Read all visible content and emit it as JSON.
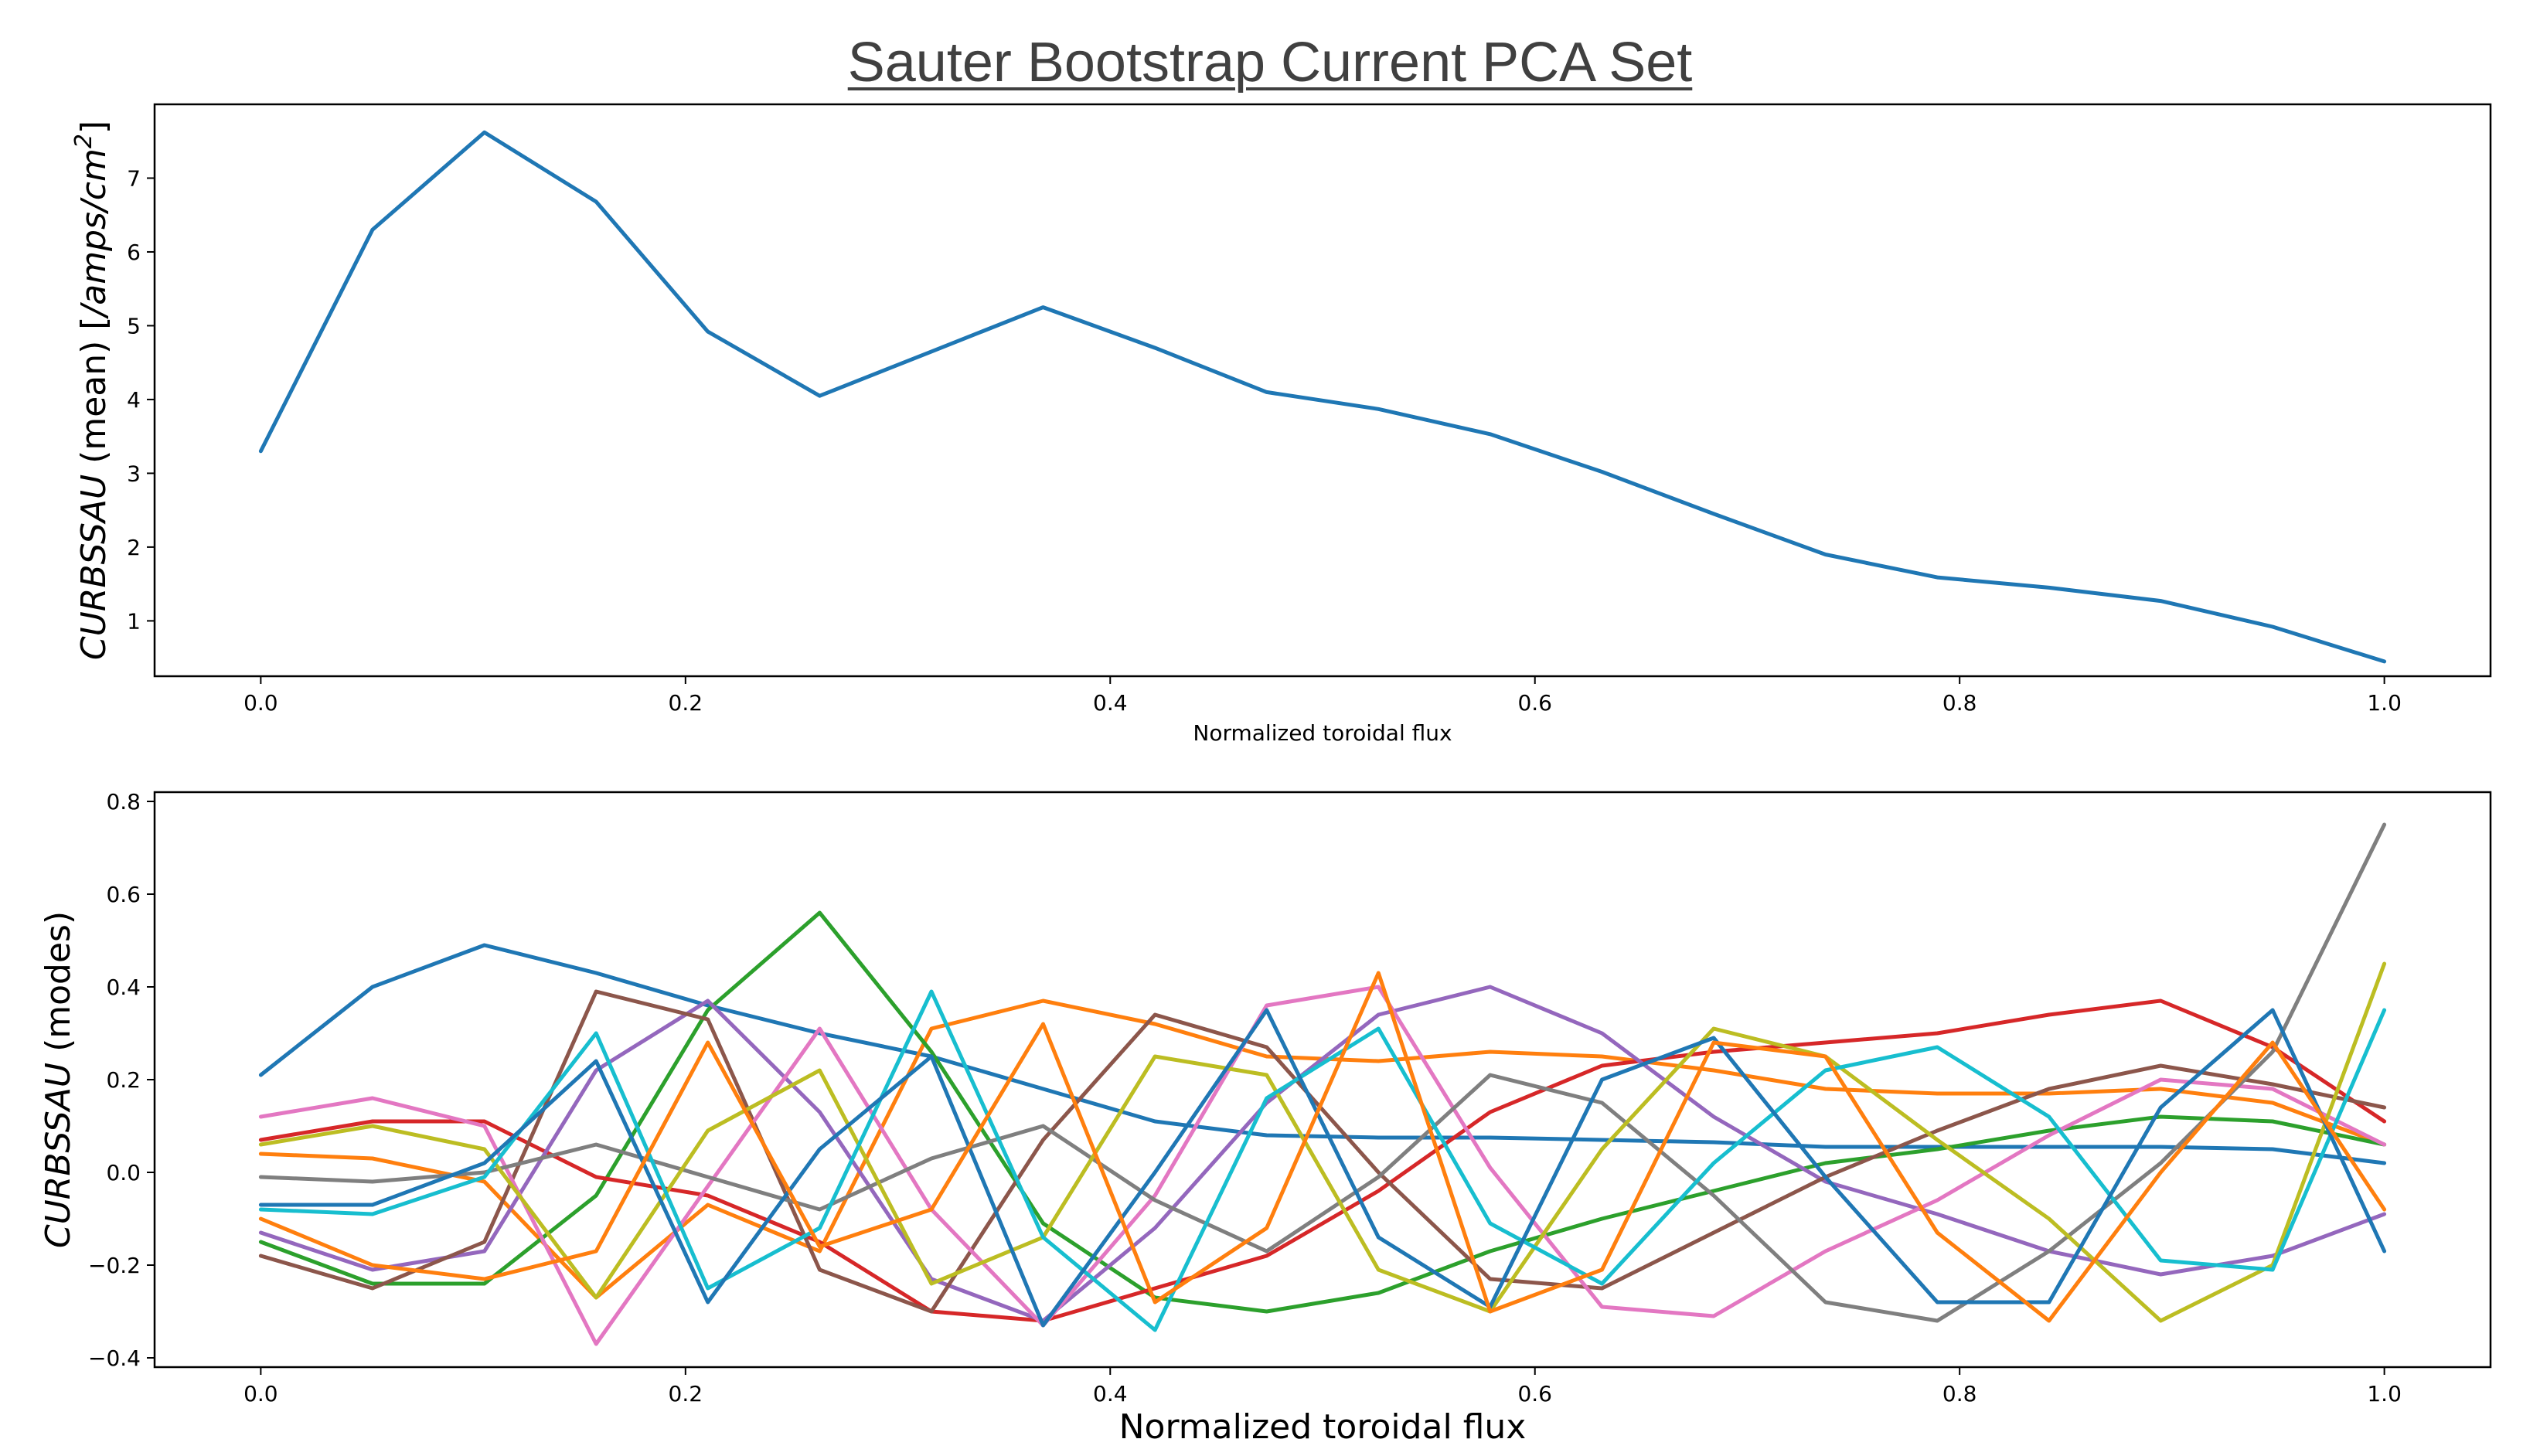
{
  "title": "Sauter Bootstrap Current PCA Set",
  "chart_data": [
    {
      "type": "line",
      "xlabel": "Normalized toroidal flux",
      "ylabel_italic": "CURBSSAU",
      "ylabel_rest": " (mean) [",
      "ylabel_units": "/amps/cm",
      "ylabel_sup": "2",
      "ylabel_close": "]",
      "xlim": [
        -0.05,
        1.05
      ],
      "ylim": [
        0.25,
        8.0
      ],
      "xticks": [
        "0.0",
        "0.2",
        "0.4",
        "0.6",
        "0.8",
        "1.0"
      ],
      "xtick_values": [
        0,
        0.2,
        0.4,
        0.6,
        0.8,
        1.0
      ],
      "yticks": [
        "1",
        "2",
        "3",
        "4",
        "5",
        "6",
        "7"
      ],
      "ytick_values": [
        1,
        2,
        3,
        4,
        5,
        6,
        7
      ],
      "grid": false,
      "x": [
        0,
        0.0526,
        0.1053,
        0.1579,
        0.2105,
        0.2632,
        0.3158,
        0.3684,
        0.4211,
        0.4737,
        0.5263,
        0.5789,
        0.6316,
        0.6842,
        0.7368,
        0.7895,
        0.8421,
        0.8947,
        0.9474,
        1.0
      ],
      "series": [
        {
          "color": "#1f77b4",
          "values": [
            3.3,
            6.3,
            7.62,
            6.68,
            4.92,
            4.05,
            4.65,
            5.25,
            4.7,
            4.1,
            3.87,
            3.53,
            3.02,
            2.45,
            1.9,
            1.59,
            1.45,
            1.27,
            0.92,
            0.45
          ]
        }
      ]
    },
    {
      "type": "line",
      "xlabel": "Normalized toroidal flux",
      "ylabel_italic": "CURBSSAU",
      "ylabel_rest": " (modes)",
      "xlim": [
        -0.05,
        1.05
      ],
      "ylim": [
        -0.42,
        0.82
      ],
      "xticks": [
        "0.0",
        "0.2",
        "0.4",
        "0.6",
        "0.8",
        "1.0"
      ],
      "xtick_values": [
        0,
        0.2,
        0.4,
        0.6,
        0.8,
        1.0
      ],
      "yticks": [
        "−0.4",
        "−0.2",
        "0.0",
        "0.2",
        "0.4",
        "0.6",
        "0.8"
      ],
      "ytick_values": [
        -0.4,
        -0.2,
        0.0,
        0.2,
        0.4,
        0.6,
        0.8
      ],
      "grid": false,
      "x": [
        0,
        0.0526,
        0.1053,
        0.1579,
        0.2105,
        0.2632,
        0.3158,
        0.3684,
        0.4211,
        0.4737,
        0.5263,
        0.5789,
        0.6316,
        0.6842,
        0.7368,
        0.7895,
        0.8421,
        0.8947,
        0.9474,
        1.0
      ],
      "series": [
        {
          "color": "#1f77b4",
          "values": [
            0.21,
            0.4,
            0.49,
            0.43,
            0.36,
            0.3,
            0.25,
            0.18,
            0.11,
            0.08,
            0.075,
            0.075,
            0.07,
            0.065,
            0.055,
            0.055,
            0.055,
            0.055,
            0.05,
            0.02
          ]
        },
        {
          "color": "#ff7f0e",
          "values": [
            0.04,
            0.03,
            -0.02,
            -0.27,
            -0.07,
            -0.17,
            0.31,
            0.37,
            0.32,
            0.25,
            0.24,
            0.26,
            0.25,
            0.22,
            0.18,
            0.17,
            0.17,
            0.18,
            0.15,
            0.06
          ]
        },
        {
          "color": "#2ca02c",
          "values": [
            -0.15,
            -0.24,
            -0.24,
            -0.05,
            0.35,
            0.56,
            0.26,
            -0.11,
            -0.27,
            -0.3,
            -0.26,
            -0.17,
            -0.1,
            -0.04,
            0.02,
            0.05,
            0.09,
            0.12,
            0.11,
            0.06
          ]
        },
        {
          "color": "#d62728",
          "values": [
            0.07,
            0.11,
            0.11,
            -0.01,
            -0.05,
            -0.15,
            -0.3,
            -0.32,
            -0.25,
            -0.18,
            -0.04,
            0.13,
            0.23,
            0.26,
            0.28,
            0.3,
            0.34,
            0.37,
            0.27,
            0.11
          ]
        },
        {
          "color": "#9467bd",
          "values": [
            -0.13,
            -0.21,
            -0.17,
            0.22,
            0.37,
            0.13,
            -0.23,
            -0.32,
            -0.12,
            0.15,
            0.34,
            0.4,
            0.3,
            0.12,
            -0.02,
            -0.09,
            -0.17,
            -0.22,
            -0.18,
            -0.09
          ]
        },
        {
          "color": "#8c564b",
          "values": [
            -0.18,
            -0.25,
            -0.15,
            0.39,
            0.33,
            -0.21,
            -0.3,
            0.07,
            0.34,
            0.27,
            0.0,
            -0.23,
            -0.25,
            -0.13,
            -0.01,
            0.09,
            0.18,
            0.23,
            0.19,
            0.14
          ]
        },
        {
          "color": "#e377c2",
          "values": [
            0.12,
            0.16,
            0.1,
            -0.37,
            -0.03,
            0.31,
            -0.08,
            -0.33,
            -0.05,
            0.36,
            0.4,
            0.01,
            -0.29,
            -0.31,
            -0.17,
            -0.06,
            0.08,
            0.2,
            0.18,
            0.06
          ]
        },
        {
          "color": "#7f7f7f",
          "values": [
            -0.01,
            -0.02,
            0.0,
            0.06,
            -0.01,
            -0.08,
            0.03,
            0.1,
            -0.06,
            -0.17,
            -0.01,
            0.21,
            0.15,
            -0.05,
            -0.28,
            -0.32,
            -0.17,
            0.02,
            0.26,
            0.75
          ]
        },
        {
          "color": "#bcbd22",
          "values": [
            0.06,
            0.1,
            0.05,
            -0.27,
            0.09,
            0.22,
            -0.24,
            -0.14,
            0.25,
            0.21,
            -0.21,
            -0.3,
            0.05,
            0.31,
            0.25,
            0.07,
            -0.1,
            -0.32,
            -0.2,
            0.45
          ]
        },
        {
          "color": "#17becf",
          "values": [
            -0.08,
            -0.09,
            -0.01,
            0.3,
            -0.25,
            -0.12,
            0.39,
            -0.14,
            -0.34,
            0.16,
            0.31,
            -0.11,
            -0.24,
            0.02,
            0.22,
            0.27,
            0.12,
            -0.19,
            -0.21,
            0.35
          ]
        },
        {
          "color": "#1f77b4",
          "values": [
            -0.07,
            -0.07,
            0.02,
            0.24,
            -0.28,
            0.05,
            0.25,
            -0.33,
            0.0,
            0.35,
            -0.14,
            -0.29,
            0.2,
            0.29,
            -0.01,
            -0.28,
            -0.28,
            0.14,
            0.35,
            -0.17
          ]
        },
        {
          "color": "#ff7f0e",
          "values": [
            -0.1,
            -0.2,
            -0.23,
            -0.17,
            0.28,
            -0.16,
            -0.08,
            0.32,
            -0.28,
            -0.12,
            0.43,
            -0.3,
            -0.21,
            0.28,
            0.25,
            -0.13,
            -0.32,
            0.0,
            0.28,
            -0.08
          ]
        }
      ]
    }
  ]
}
